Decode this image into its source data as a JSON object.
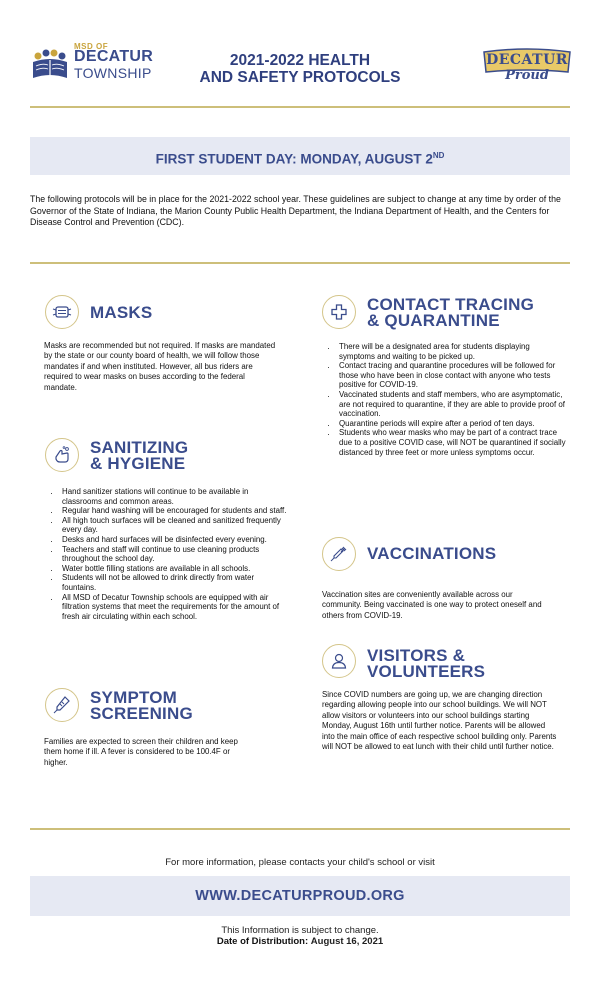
{
  "header": {
    "logo_sub": "MSD OF",
    "logo_main": "DECATUR",
    "logo_sub2": "TOWNSHIP",
    "title_line1": "2021-2022 HEALTH",
    "title_line2": "AND SAFETY PROTOCOLS",
    "proud_word1": "DECATUR",
    "proud_word2": "Proud"
  },
  "first_day": {
    "label": "FIRST STUDENT DAY: MONDAY, AUGUST 2",
    "suffix": "ND"
  },
  "intro": "The following protocols will be in place for the 2021-2022 school year. These guidelines are subject to change at any time by order of the Governor of the State of Indiana, the Marion County Public Health Department, the Indiana Department of Health, and the Centers for Disease Control and Prevention (CDC).",
  "sections": {
    "masks": {
      "title": "MASKS",
      "icon": "mask-icon",
      "text": "Masks are recommended but not required. If masks are mandated by the state or our county board of health, we will follow those mandates if and when instituted. However, all bus riders are required to wear masks on buses according to the federal mandate."
    },
    "sanitizing": {
      "title_line1": "SANITIZING",
      "title_line2": "& HYGIENE",
      "icon": "hand-wash-icon",
      "items": [
        "Hand sanitizer stations will continue to be available in classrooms and common areas.",
        "Regular hand washing will be encouraged for students and staff.",
        "All high touch surfaces will be cleaned and sanitized frequently every day.",
        "Desks and hard surfaces will be disinfected every evening.",
        "Teachers and staff will continue to use cleaning products throughout the school day.",
        "Water bottle filling stations are available in all schools.",
        "Students will not be allowed to drink directly from water fountains.",
        "All MSD of Decatur Township schools are equipped with air filtration systems that meet the requirements for the amount of fresh air circulating within each school."
      ]
    },
    "symptom": {
      "title_line1": "SYMPTOM",
      "title_line2": "SCREENING",
      "icon": "thermometer-icon",
      "text": "Families are expected to screen their children and keep them home if ill. A fever is considered to be 100.4F or higher."
    },
    "contact": {
      "title_line1": "CONTACT TRACING",
      "title_line2": "& QUARANTINE",
      "icon": "medical-cross-icon",
      "items": [
        "There will be a designated area for students displaying symptoms and waiting to be picked up.",
        "Contact tracing and quarantine procedures will be followed for those who have been in close contact with anyone who tests positive for COVID-19.",
        "Vaccinated students and staff members, who are asymptomatic, are not required to quarantine, if they are able to provide proof of vaccination.",
        "Quarantine periods will expire after a period of ten days.",
        "Students who wear masks who may be part of a contract trace due to a positive COVID case, will NOT be quarantined if socially distanced by three feet or more unless symptoms occur."
      ]
    },
    "vaccinations": {
      "title": "VACCINATIONS",
      "icon": "syringe-icon",
      "text": "Vaccination sites are conveniently available across our community. Being vaccinated is one way to protect oneself and others from COVID-19."
    },
    "visitors": {
      "title_line1": "VISITORS &",
      "title_line2": "VOLUNTEERS",
      "icon": "person-icon",
      "text": "Since COVID numbers are going up, we are changing direction regarding allowing people into our school buildings. We will NOT allow visitors or volunteers into our school buildings starting Monday, August 16th until further notice. Parents will be allowed into the main office of each respective school building only. Parents will NOT be allowed to eat lunch with their child until further notice."
    }
  },
  "footer": {
    "more_info": "For more information, please contacts your child's school or visit",
    "url": "WWW.DECATURPROUD.ORG",
    "note": "This Information is subject to change.",
    "distribution_label": "Date of Distribution:",
    "distribution_date": "August 16, 2021"
  },
  "colors": {
    "navy": "#3a4c8c",
    "gold": "#cdbf7a",
    "band": "#e6e9f3"
  }
}
